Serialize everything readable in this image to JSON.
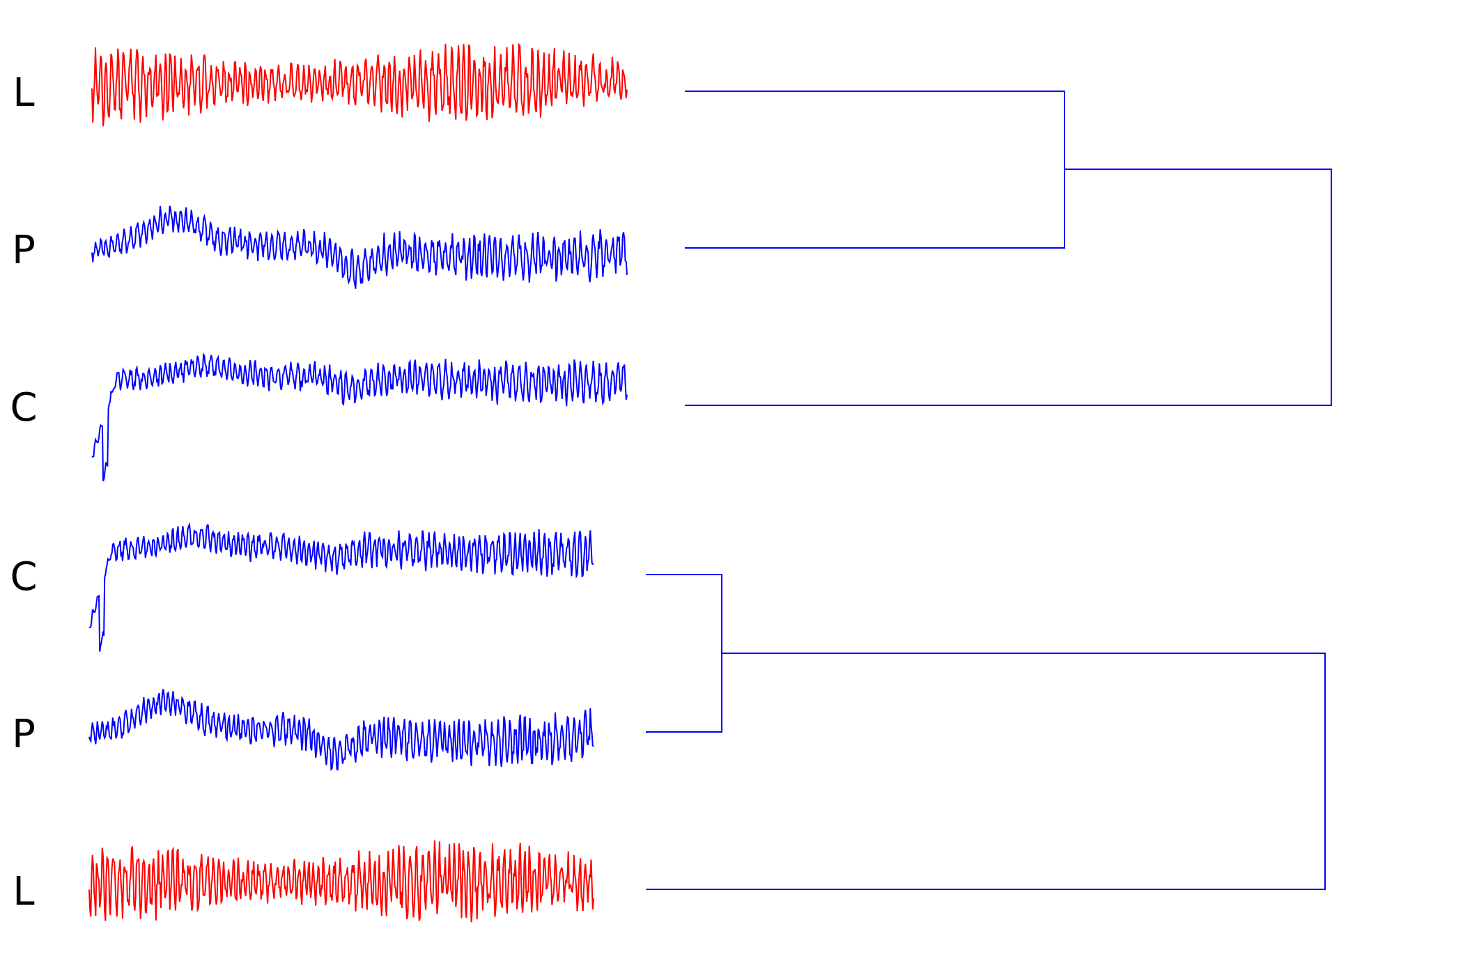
{
  "colors": {
    "red_series": "#ff0000",
    "blue_series": "#0000ff",
    "tree": "#0000ff",
    "label": "#000000"
  },
  "groups": [
    {
      "id": "top",
      "leaves": [
        {
          "label": "L",
          "color": "red",
          "shape": "oscillating"
        },
        {
          "label": "P",
          "color": "blue",
          "shape": "oscillating-drift"
        },
        {
          "label": "C",
          "color": "blue",
          "shape": "rise-then-oscillate"
        }
      ],
      "tree": {
        "merges": [
          [
            0,
            1
          ],
          [
            "0-1",
            2
          ]
        ]
      }
    },
    {
      "id": "bottom",
      "leaves": [
        {
          "label": "C",
          "color": "blue",
          "shape": "rise-then-oscillate"
        },
        {
          "label": "P",
          "color": "blue",
          "shape": "oscillating-drift"
        },
        {
          "label": "L",
          "color": "red",
          "shape": "oscillating"
        }
      ],
      "tree": {
        "merges": [
          [
            0,
            1
          ],
          [
            "0-1",
            2
          ]
        ]
      }
    }
  ]
}
